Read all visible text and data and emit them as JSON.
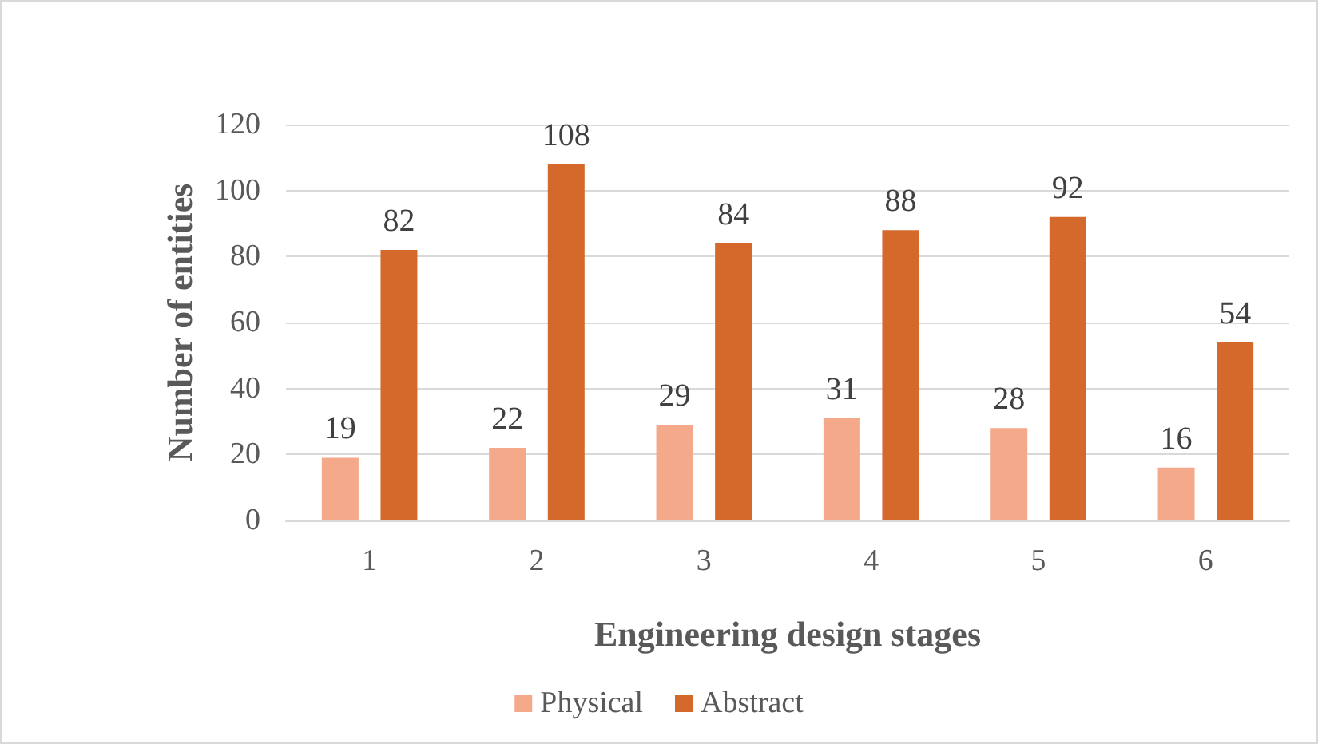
{
  "chart_data": {
    "type": "bar",
    "xlabel": "Engineering design stages",
    "ylabel": "Number of entities",
    "categories": [
      "1",
      "2",
      "3",
      "4",
      "5",
      "6"
    ],
    "series": [
      {
        "name": "Physical",
        "color": "#f4a98a",
        "values": [
          19,
          22,
          29,
          31,
          28,
          16
        ]
      },
      {
        "name": "Abstract",
        "color": "#d4692b",
        "values": [
          82,
          108,
          84,
          88,
          92,
          54
        ]
      }
    ],
    "ylim": [
      0,
      120
    ],
    "yticks": [
      0,
      20,
      40,
      60,
      80,
      100,
      120
    ],
    "grid": "y",
    "legend": "bottom",
    "data_labels": true
  }
}
